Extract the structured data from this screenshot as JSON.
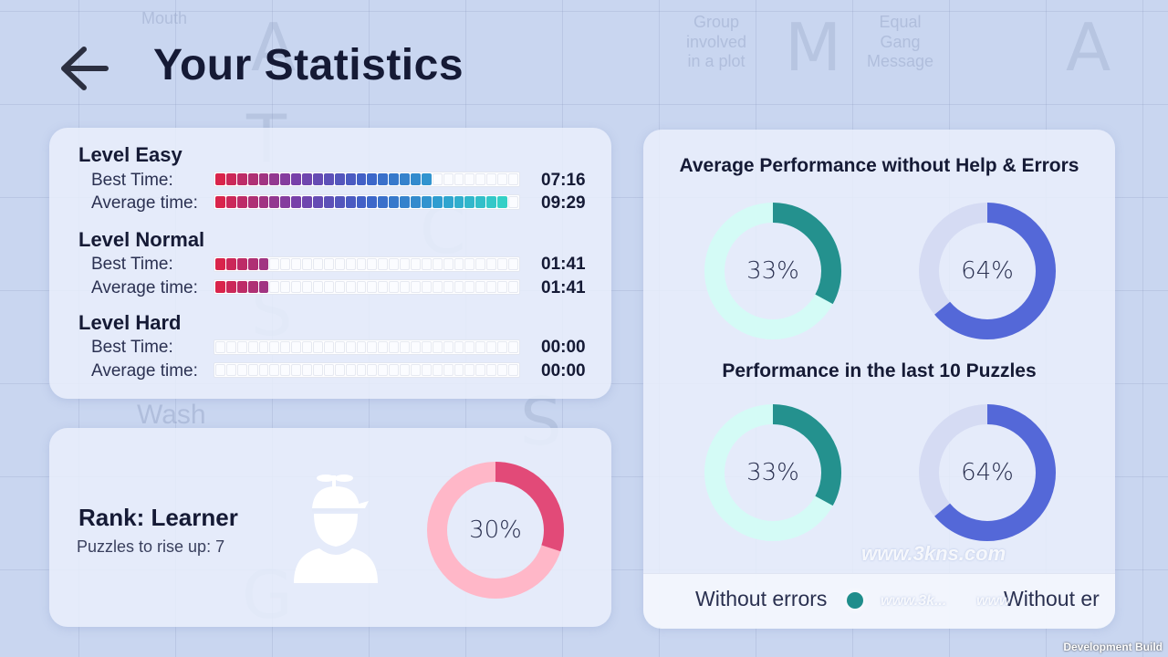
{
  "page": {
    "title": "Your Statistics"
  },
  "icons": {
    "back": "arrow-left-icon",
    "avatar": "propeller-cap-user-icon"
  },
  "bar_gradient": [
    "#d9244b",
    "#7a3fa8",
    "#3d63c8",
    "#2e9fd0",
    "#35d9c4"
  ],
  "levels": [
    {
      "title": "Level Easy",
      "rows": [
        {
          "label": "Best Time:",
          "time": "07:16",
          "fill_fraction": 0.73
        },
        {
          "label": "Average time:",
          "time": "09:29",
          "fill_fraction": 0.95
        }
      ]
    },
    {
      "title": "Level Normal",
      "rows": [
        {
          "label": "Best Time:",
          "time": "01:41",
          "fill_fraction": 0.17
        },
        {
          "label": "Average time:",
          "time": "01:41",
          "fill_fraction": 0.17
        }
      ]
    },
    {
      "title": "Level Hard",
      "rows": [
        {
          "label": "Best Time:",
          "time": "00:00",
          "fill_fraction": 0
        },
        {
          "label": "Average time:",
          "time": "00:00",
          "fill_fraction": 0
        }
      ]
    }
  ],
  "rank": {
    "title": "Rank: Learner",
    "subtitle": "Puzzles to rise up:  7",
    "progress_label": "30%",
    "progress_fraction": 0.3,
    "colors": {
      "fill": "#e24a78",
      "track": "#ffb7c8"
    }
  },
  "performance": {
    "avg_title": "Average Performance without Help & Errors",
    "last10_title": "Performance in the last 10 Puzzles",
    "avg_donuts": [
      {
        "label": "33%",
        "fraction": 0.33,
        "fill": "#24918e",
        "track": "#d4fbf6"
      },
      {
        "label": "64%",
        "fraction": 0.64,
        "fill": "#5468d8",
        "track": "#d5dbf3"
      }
    ],
    "last10_donuts": [
      {
        "label": "33%",
        "fraction": 0.33,
        "fill": "#24918e",
        "track": "#d4fbf6"
      },
      {
        "label": "64%",
        "fraction": 0.64,
        "fill": "#5468d8",
        "track": "#d5dbf3"
      }
    ],
    "legend": {
      "without_errors": "Without errors",
      "without_help_partial": "Without er",
      "dot_color": "#1f8d8b"
    }
  },
  "overlay": {
    "watermark_1": "www.3kns.com",
    "watermark_2": "www.3k...",
    "watermark_3": "www",
    "dev_build": "Development Build"
  }
}
